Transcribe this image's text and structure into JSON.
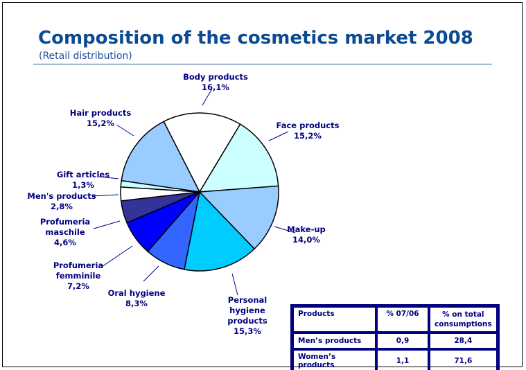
{
  "title": "Composition of the cosmetics market 2008",
  "subtitle": "(Retail distribution)",
  "chart_data": {
    "type": "pie",
    "title": "Composition of the cosmetics market 2008",
    "subtitle": "(Retail distribution)",
    "slices": [
      {
        "label": "Body products",
        "value": 16.1,
        "text": "16,1%",
        "color": "#ffffff"
      },
      {
        "label": "Face products",
        "value": 15.2,
        "text": "15,2%",
        "color": "#ccffff"
      },
      {
        "label": "Make-up",
        "value": 14.0,
        "text": "14,0%",
        "color": "#99ccff"
      },
      {
        "label": "Personal hygiene products",
        "value": 15.3,
        "text": "15,3%",
        "color": "#00ccff"
      },
      {
        "label": "Oral hygiene",
        "value": 8.3,
        "text": "8,3%",
        "color": "#3366ff"
      },
      {
        "label": "Profumeria femminile",
        "value": 7.2,
        "text": "7,2%",
        "color": "#0000ff"
      },
      {
        "label": "Profumeria maschile",
        "value": 4.6,
        "text": "4,6%",
        "color": "#333399"
      },
      {
        "label": "Men's products",
        "value": 2.8,
        "text": "2,8%",
        "color": "#ffffff"
      },
      {
        "label": "Gift articles",
        "value": 1.3,
        "text": "1,3%",
        "color": "#ccffff"
      },
      {
        "label": "Hair products",
        "value": 15.2,
        "text": "15,2%",
        "color": "#99ccff"
      }
    ]
  },
  "table": {
    "headers": [
      "Products",
      "% 07/06",
      "%  on total consumptions"
    ],
    "rows": [
      [
        "Men’s products",
        "0,9",
        "28,4"
      ],
      [
        "Women’s products",
        "1,1",
        "71,6"
      ]
    ]
  }
}
